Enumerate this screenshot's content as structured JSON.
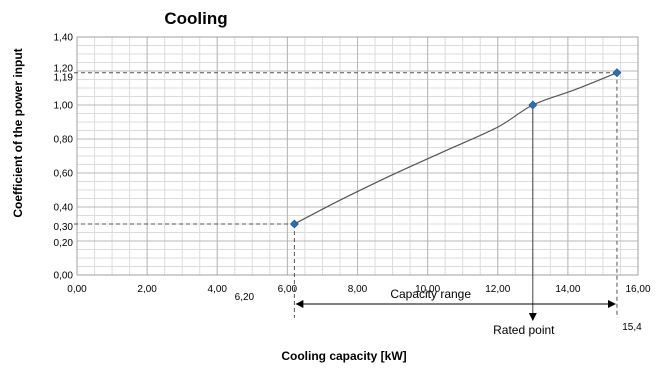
{
  "chart_data": {
    "type": "line",
    "title": "Cooling",
    "xlabel": "Cooling capacity [kW]",
    "ylabel": "Coefficient of the power input",
    "xlim": [
      0,
      16
    ],
    "ylim": [
      0,
      1.4
    ],
    "x_ticks": [
      {
        "value": 0,
        "label": "0,00"
      },
      {
        "value": 2,
        "label": "2,00"
      },
      {
        "value": 4,
        "label": "4,00"
      },
      {
        "value": 6,
        "label": "6,00"
      },
      {
        "value": 8,
        "label": "8,00"
      },
      {
        "value": 10,
        "label": "10,00"
      },
      {
        "value": 12,
        "label": "12,00"
      },
      {
        "value": 14,
        "label": "14,00"
      },
      {
        "value": 16,
        "label": "16,00"
      }
    ],
    "y_ticks": [
      {
        "value": 0,
        "label": "0,00"
      },
      {
        "value": 0.2,
        "label": "0,20"
      },
      {
        "value": 0.3,
        "label": "0,30"
      },
      {
        "value": 0.4,
        "label": "0,40"
      },
      {
        "value": 0.6,
        "label": "0,60"
      },
      {
        "value": 0.8,
        "label": "0,80"
      },
      {
        "value": 1.0,
        "label": "1,00"
      },
      {
        "value": 1.19,
        "label": "1,19"
      },
      {
        "value": 1.2,
        "label": "1,20"
      },
      {
        "value": 1.4,
        "label": "1,40"
      }
    ],
    "grid": true,
    "line_color": "#555555",
    "marker_color": "#2e6db4",
    "series": [
      {
        "x": [
          6.2,
          7.5,
          9.0,
          10.5,
          12.0,
          13.0,
          14.2,
          15.4
        ],
        "y": [
          0.3,
          0.44,
          0.59,
          0.73,
          0.87,
          1.0,
          1.09,
          1.19
        ]
      }
    ],
    "markers": [
      {
        "x": 6.2,
        "y": 0.3
      },
      {
        "x": 13.0,
        "y": 1.0
      },
      {
        "x": 15.4,
        "y": 1.19
      }
    ],
    "annotations": {
      "x_min_label": "6,20",
      "x_max_label": "15,4",
      "capacity_range_label": "Capacity range",
      "rated_point_label": "Rated point"
    }
  }
}
